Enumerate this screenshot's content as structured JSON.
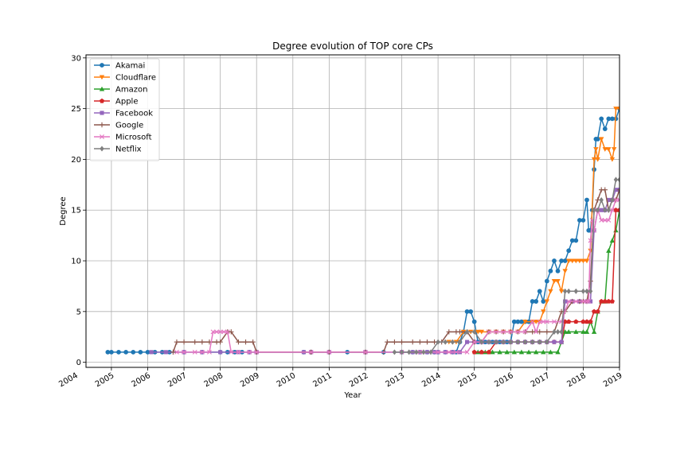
{
  "chart_data": {
    "type": "line",
    "title": "Degree evolution of TOP core CPs",
    "xlabel": "Year",
    "ylabel": "Degree",
    "xlim": [
      2004.3,
      2019.0
    ],
    "ylim": [
      -0.5,
      30.3
    ],
    "x_ticks": [
      "2004",
      "2005",
      "2006",
      "2007",
      "2008",
      "2009",
      "2010",
      "2011",
      "2012",
      "2013",
      "2014",
      "2015",
      "2016",
      "2017",
      "2018",
      "2019"
    ],
    "y_ticks": [
      "0",
      "5",
      "10",
      "15",
      "20",
      "25",
      "30"
    ],
    "grid": true,
    "legend_position": "upper left",
    "series": [
      {
        "name": "Akamai",
        "color": "#1f77b4",
        "marker": "circle",
        "x": [
          2004.9,
          2005.0,
          2005.2,
          2005.4,
          2005.6,
          2005.8,
          2006.0,
          2006.2,
          2006.4,
          2006.6,
          2007.0,
          2007.5,
          2008.0,
          2008.2,
          2008.4,
          2008.6,
          2008.8,
          2009.0,
          2010.3,
          2010.5,
          2011.0,
          2011.5,
          2012.0,
          2012.5,
          2013.0,
          2013.3,
          2013.5,
          2013.7,
          2013.9,
          2014.0,
          2014.2,
          2014.4,
          2014.5,
          2014.6,
          2014.7,
          2014.8,
          2014.9,
          2015.0,
          2015.1,
          2015.3,
          2015.5,
          2015.7,
          2015.9,
          2016.0,
          2016.1,
          2016.2,
          2016.3,
          2016.4,
          2016.5,
          2016.6,
          2016.7,
          2016.8,
          2016.9,
          2017.0,
          2017.1,
          2017.2,
          2017.3,
          2017.4,
          2017.5,
          2017.6,
          2017.7,
          2017.8,
          2017.9,
          2018.0,
          2018.1,
          2018.15,
          2018.2,
          2018.25,
          2018.3,
          2018.35,
          2018.4,
          2018.5,
          2018.6,
          2018.7,
          2018.8,
          2018.9,
          2019.0
        ],
        "y": [
          1,
          1,
          1,
          1,
          1,
          1,
          1,
          1,
          1,
          1,
          1,
          1,
          1,
          1,
          1,
          1,
          1,
          1,
          1,
          1,
          1,
          1,
          1,
          1,
          1,
          1,
          1,
          1,
          1,
          1,
          1,
          1,
          1,
          2,
          3,
          5,
          5,
          4,
          2,
          2,
          2,
          2,
          2,
          2,
          4,
          4,
          4,
          4,
          4,
          6,
          6,
          7,
          6,
          8,
          9,
          10,
          9,
          10,
          10,
          11,
          12,
          12,
          14,
          14,
          16,
          13,
          13,
          15,
          19,
          22,
          22,
          24,
          23,
          24,
          24,
          24,
          25
        ]
      },
      {
        "name": "Cloudflare",
        "color": "#ff7f0e",
        "marker": "triangle-down",
        "x": [
          2014.3,
          2014.5,
          2014.7,
          2014.9,
          2015.1,
          2015.2,
          2015.4,
          2015.6,
          2015.8,
          2016.0,
          2016.2,
          2016.4,
          2016.6,
          2016.7,
          2016.8,
          2016.9,
          2017.0,
          2017.1,
          2017.2,
          2017.3,
          2017.4,
          2017.5,
          2017.6,
          2017.7,
          2017.8,
          2017.9,
          2018.0,
          2018.1,
          2018.2,
          2018.3,
          2018.35,
          2018.4,
          2018.5,
          2018.6,
          2018.7,
          2018.8,
          2018.85,
          2018.9,
          2019.0
        ],
        "y": [
          2,
          2,
          3,
          3,
          3,
          3,
          3,
          3,
          3,
          3,
          3,
          4,
          4,
          4,
          4,
          5,
          6,
          7,
          8,
          8,
          7,
          9,
          10,
          10,
          10,
          10,
          10,
          10,
          11,
          20,
          21,
          20,
          22,
          21,
          21,
          20,
          21,
          25,
          25
        ]
      },
      {
        "name": "Amazon",
        "color": "#2ca02c",
        "marker": "triangle-up",
        "x": [
          2015.1,
          2015.3,
          2015.5,
          2015.7,
          2015.9,
          2016.1,
          2016.3,
          2016.5,
          2016.7,
          2016.9,
          2017.1,
          2017.3,
          2017.4,
          2017.5,
          2017.6,
          2017.8,
          2018.0,
          2018.1,
          2018.2,
          2018.3,
          2018.4,
          2018.5,
          2018.6,
          2018.7,
          2018.8,
          2018.9,
          2019.0
        ],
        "y": [
          1,
          1,
          1,
          1,
          1,
          1,
          1,
          1,
          1,
          1,
          1,
          1,
          2,
          3,
          3,
          3,
          3,
          3,
          4,
          3,
          5,
          6,
          6,
          11,
          12,
          13,
          15
        ]
      },
      {
        "name": "Apple",
        "color": "#d62728",
        "marker": "pentagon",
        "x": [
          2015.0,
          2015.2,
          2015.4,
          2015.6,
          2015.8,
          2016.0,
          2016.2,
          2016.4,
          2016.6,
          2016.8,
          2017.0,
          2017.2,
          2017.4,
          2017.5,
          2017.6,
          2017.8,
          2018.0,
          2018.1,
          2018.2,
          2018.3,
          2018.4,
          2018.5,
          2018.6,
          2018.7,
          2018.8,
          2018.9,
          2019.0
        ],
        "y": [
          1,
          1,
          1,
          2,
          2,
          2,
          2,
          2,
          2,
          2,
          2,
          2,
          2,
          4,
          4,
          4,
          4,
          4,
          4,
          5,
          5,
          6,
          6,
          6,
          6,
          15,
          15
        ]
      },
      {
        "name": "Facebook",
        "color": "#9467bd",
        "marker": "square",
        "x": [
          2006.1,
          2006.5,
          2007.0,
          2007.5,
          2008.0,
          2008.5,
          2008.8,
          2009.0,
          2010.3,
          2010.5,
          2011.0,
          2012.0,
          2013.0,
          2013.3,
          2013.5,
          2013.7,
          2013.9,
          2014.0,
          2014.2,
          2014.4,
          2014.6,
          2014.8,
          2015.0,
          2015.2,
          2015.4,
          2015.6,
          2015.8,
          2016.0,
          2016.2,
          2016.4,
          2016.6,
          2016.8,
          2017.0,
          2017.2,
          2017.4,
          2017.5,
          2017.7,
          2017.9,
          2018.1,
          2018.2,
          2018.3,
          2018.4,
          2018.5,
          2018.6,
          2018.7,
          2018.8,
          2018.9,
          2019.0
        ],
        "y": [
          1,
          1,
          1,
          1,
          1,
          1,
          1,
          1,
          1,
          1,
          1,
          1,
          1,
          1,
          1,
          1,
          1,
          1,
          1,
          1,
          1,
          2,
          2,
          2,
          2,
          2,
          2,
          2,
          2,
          2,
          2,
          2,
          2,
          2,
          2,
          6,
          6,
          6,
          6,
          6,
          13,
          15,
          15,
          15,
          16,
          16,
          17,
          17
        ]
      },
      {
        "name": "Google",
        "color": "#8c564b",
        "marker": "plus",
        "x": [
          2006.7,
          2006.8,
          2007.0,
          2007.3,
          2007.5,
          2007.7,
          2007.9,
          2008.0,
          2008.2,
          2008.3,
          2008.5,
          2008.7,
          2008.9,
          2009.0,
          2010.5,
          2011.0,
          2012.0,
          2012.5,
          2012.6,
          2012.8,
          2013.0,
          2013.3,
          2013.5,
          2013.7,
          2013.9,
          2014.1,
          2014.3,
          2014.5,
          2014.6,
          2014.8,
          2015.0,
          2015.2,
          2015.4,
          2015.6,
          2015.8,
          2016.0,
          2016.2,
          2016.4,
          2016.6,
          2016.8,
          2017.0,
          2017.2,
          2017.4,
          2017.5,
          2017.7,
          2017.9,
          2018.0,
          2018.1,
          2018.2,
          2018.3,
          2018.4,
          2018.5,
          2018.6,
          2018.7,
          2018.8,
          2018.9,
          2019.0
        ],
        "y": [
          1,
          2,
          2,
          2,
          2,
          2,
          2,
          2,
          3,
          3,
          2,
          2,
          2,
          1,
          1,
          1,
          1,
          1,
          2,
          2,
          2,
          2,
          2,
          2,
          2,
          2,
          3,
          3,
          3,
          3,
          2,
          2,
          3,
          3,
          3,
          3,
          3,
          3,
          3,
          3,
          3,
          3,
          5,
          5,
          6,
          6,
          6,
          6,
          8,
          15,
          16,
          17,
          17,
          15,
          16,
          16,
          17
        ]
      },
      {
        "name": "Microsoft",
        "color": "#e377c2",
        "marker": "x",
        "x": [
          2006.8,
          2007.0,
          2007.3,
          2007.5,
          2007.7,
          2007.8,
          2007.9,
          2008.0,
          2008.1,
          2008.2,
          2008.3,
          2008.5,
          2008.8,
          2009.0,
          2010.5,
          2011.0,
          2012.0,
          2013.0,
          2013.5,
          2014.0,
          2014.3,
          2014.5,
          2014.8,
          2015.0,
          2015.2,
          2015.4,
          2015.6,
          2015.8,
          2016.0,
          2016.2,
          2016.4,
          2016.6,
          2016.7,
          2016.8,
          2016.9,
          2017.0,
          2017.2,
          2017.4,
          2017.6,
          2017.8,
          2018.0,
          2018.1,
          2018.15,
          2018.2,
          2018.25,
          2018.3,
          2018.4,
          2018.5,
          2018.6,
          2018.7,
          2018.8,
          2018.9,
          2019.0
        ],
        "y": [
          1,
          1,
          1,
          1,
          1,
          3,
          3,
          3,
          3,
          3,
          1,
          1,
          1,
          1,
          1,
          1,
          1,
          1,
          1,
          1,
          1,
          1,
          1,
          2,
          2,
          3,
          3,
          3,
          3,
          3,
          3,
          4,
          3,
          4,
          4,
          4,
          4,
          4,
          6,
          6,
          6,
          6,
          6,
          12,
          14,
          13,
          15,
          14,
          14,
          14,
          15,
          16,
          16
        ]
      },
      {
        "name": "Netflix",
        "color": "#7f7f7f",
        "marker": "diamond",
        "x": [
          2012.8,
          2013.0,
          2013.2,
          2013.4,
          2013.6,
          2013.8,
          2014.0,
          2014.2,
          2014.4,
          2014.6,
          2014.8,
          2015.0,
          2015.2,
          2015.4,
          2015.6,
          2015.8,
          2016.0,
          2016.2,
          2016.4,
          2016.6,
          2016.8,
          2017.0,
          2017.2,
          2017.3,
          2017.4,
          2017.5,
          2017.6,
          2017.8,
          2018.0,
          2018.1,
          2018.2,
          2018.3,
          2018.4,
          2018.5,
          2018.6,
          2018.7,
          2018.8,
          2018.9,
          2019.0
        ],
        "y": [
          1,
          1,
          1,
          1,
          1,
          1,
          2,
          2,
          2,
          2,
          3,
          3,
          2,
          2,
          2,
          2,
          2,
          2,
          2,
          2,
          2,
          2,
          3,
          3,
          3,
          7,
          7,
          7,
          7,
          7,
          7,
          15,
          15,
          16,
          15,
          15,
          16,
          18,
          18
        ]
      }
    ]
  }
}
